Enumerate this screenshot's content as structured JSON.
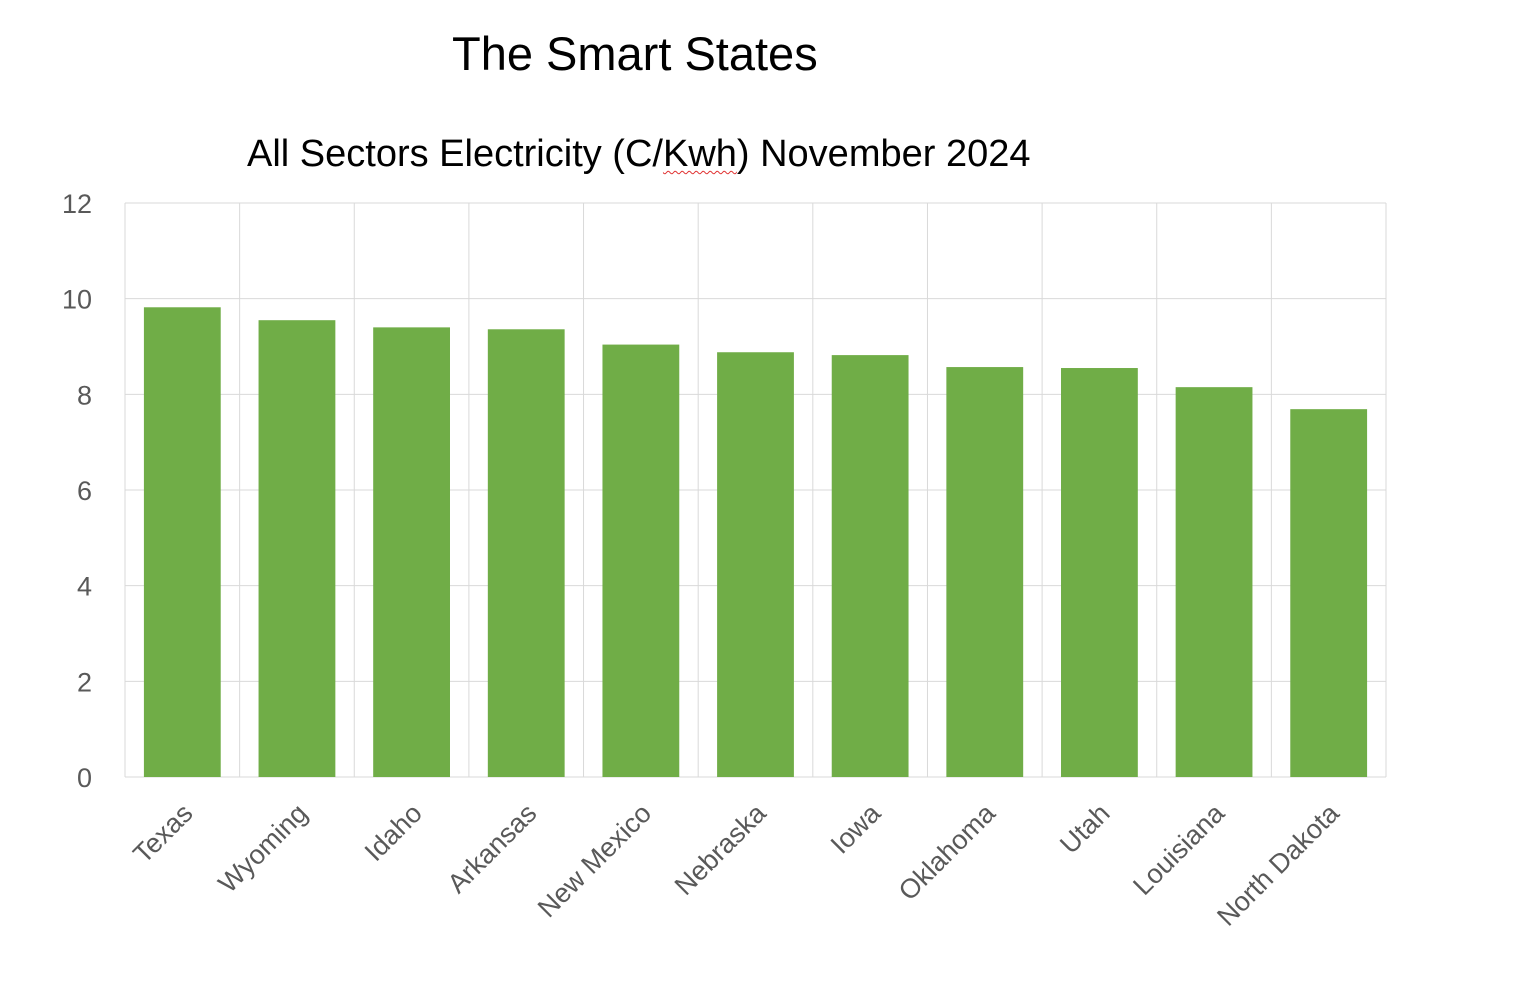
{
  "page": {
    "title": "The Smart States"
  },
  "chart_data": {
    "type": "bar",
    "title": "All Sectors Electricity (C/Kwh) November 2024",
    "title_parts": {
      "before": "All Sectors Electricity (C/",
      "marked": "Kwh",
      "after": ") November 2024"
    },
    "xlabel": "",
    "ylabel": "",
    "categories": [
      "Texas",
      "Wyoming",
      "Idaho",
      "Arkansas",
      "New Mexico",
      "Nebraska",
      "Iowa",
      "Oklahoma",
      "Utah",
      "Louisiana",
      "North Dakota"
    ],
    "values": [
      9.82,
      9.55,
      9.4,
      9.36,
      9.04,
      8.88,
      8.82,
      8.57,
      8.55,
      8.15,
      7.69
    ],
    "ylim": [
      0,
      12
    ],
    "yticks": [
      "0",
      "2",
      "4",
      "6",
      "8",
      "10",
      "12"
    ],
    "grid": true,
    "legend": "none",
    "colors": {
      "bar": "#70AD47",
      "grid": "#d9d9d9",
      "tick_text": "#595959"
    }
  }
}
